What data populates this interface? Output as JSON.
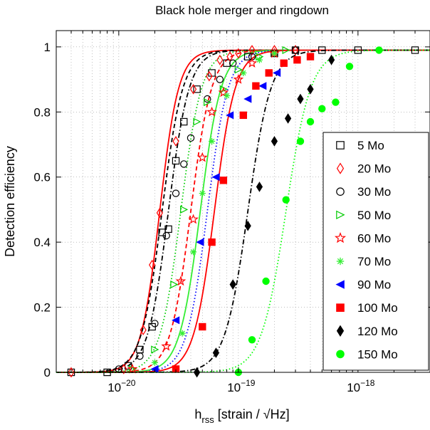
{
  "chart_data": {
    "type": "scatter",
    "title": "Black hole merger and ringdown",
    "ylabel": "Detection efficiency",
    "xlabel_main": "h",
    "xlabel_sub": "rss",
    "xlabel_rest": " [strain / √Hz]",
    "x_scale": "log",
    "xlim": [
      3e-21,
      4e-18
    ],
    "ylim": [
      0,
      1.05
    ],
    "grid": true,
    "legend_position": "right",
    "x_ticks": [
      {
        "value": 1e-20,
        "base": "10",
        "exp": "−20"
      },
      {
        "value": 1e-19,
        "base": "10",
        "exp": "−19"
      },
      {
        "value": 1e-18,
        "base": "10",
        "exp": "−18"
      }
    ],
    "y_ticks": [
      {
        "value": 0,
        "label": "0"
      },
      {
        "value": 0.2,
        "label": "0.2"
      },
      {
        "value": 0.4,
        "label": "0.4"
      },
      {
        "value": 0.6,
        "label": "0.6"
      },
      {
        "value": 0.8,
        "label": "0.8"
      },
      {
        "value": 1,
        "label": "1"
      }
    ],
    "series": [
      {
        "name": "5 Mo",
        "color": "#000000",
        "marker": "square",
        "filled": false,
        "line": "dashdot",
        "x50": 2.6e-20,
        "slope": 5.0,
        "x": [
          4e-21,
          8e-21,
          1.2e-20,
          1.5e-20,
          1.9e-20,
          2.3e-20,
          2.6e-20,
          3e-20,
          3.5e-20,
          4.5e-20,
          6e-20,
          8e-20,
          1.2e-19,
          2e-19,
          3e-19,
          5e-19,
          1e-18,
          3e-18
        ],
        "y": [
          0,
          0,
          0.02,
          0.07,
          0.14,
          0.43,
          0.44,
          0.65,
          0.77,
          0.87,
          0.92,
          0.95,
          0.97,
          0.98,
          0.99,
          0.99,
          0.99,
          0.99
        ]
      },
      {
        "name": "20 Mo",
        "color": "#ff0000",
        "marker": "diamond",
        "filled": false,
        "line": "solid",
        "x50": 2.2e-20,
        "slope": 5.5,
        "x": [
          4e-21,
          1.1e-20,
          1.6e-20,
          1.9e-20,
          2.2e-20,
          3e-20,
          4.2e-20,
          5.7e-20,
          7e-20,
          8.5e-20,
          1e-19,
          1.3e-19,
          2e-19,
          3e-19
        ],
        "y": [
          0,
          0.01,
          0.13,
          0.33,
          0.49,
          0.71,
          0.87,
          0.91,
          0.96,
          0.97,
          0.98,
          0.99,
          0.99,
          0.99
        ]
      },
      {
        "name": "30 Mo",
        "color": "#000000",
        "marker": "circle",
        "filled": false,
        "line": "dashed",
        "x50": 2.3e-20,
        "slope": 5.0,
        "x": [
          1e-20,
          1.5e-20,
          2e-20,
          2.5e-20,
          3e-20,
          3.5e-20,
          4e-20,
          5.5e-20,
          7e-20,
          9e-20,
          1.3e-19,
          2e-19,
          3e-19
        ],
        "y": [
          0.01,
          0.05,
          0.15,
          0.42,
          0.55,
          0.64,
          0.72,
          0.84,
          0.9,
          0.95,
          0.97,
          0.98,
          0.99
        ]
      },
      {
        "name": "50 Mo",
        "color": "#00cc00",
        "marker": "triangle-right",
        "filled": false,
        "line": "dotted",
        "x50": 3.3e-20,
        "slope": 5.0,
        "x": [
          1.3e-20,
          2e-20,
          2.9e-20,
          3.5e-20,
          4.5e-20,
          5.5e-20,
          7.5e-20,
          1e-19,
          1.5e-19,
          2.5e-19
        ],
        "y": [
          0.01,
          0.07,
          0.27,
          0.5,
          0.77,
          0.83,
          0.87,
          0.93,
          0.97,
          0.99
        ]
      },
      {
        "name": "60 Mo",
        "color": "#ff0000",
        "marker": "star",
        "filled": false,
        "line": "dashed",
        "x50": 4e-20,
        "slope": 5.0,
        "x": [
          1.3e-20,
          2.5e-20,
          3.3e-20,
          4.2e-20,
          5e-20,
          6e-20,
          7.5e-20,
          1e-19,
          1.3e-19,
          2e-19
        ],
        "y": [
          0.01,
          0.08,
          0.28,
          0.47,
          0.66,
          0.8,
          0.86,
          0.9,
          0.95,
          0.98
        ]
      },
      {
        "name": "70 Mo",
        "color": "#33ee33",
        "marker": "asterisk",
        "filled": false,
        "line": "solid",
        "x50": 4.8e-20,
        "slope": 5.0,
        "x": [
          2e-20,
          3.4e-20,
          4.2e-20,
          5e-20,
          6e-20,
          8e-20,
          1.1e-19,
          1.5e-19,
          2e-19
        ],
        "y": [
          0.03,
          0.12,
          0.37,
          0.55,
          0.71,
          0.85,
          0.92,
          0.96,
          0.98
        ]
      },
      {
        "name": "90 Mo",
        "color": "#0000ff",
        "marker": "triangle-left",
        "filled": true,
        "line": "dotted",
        "x50": 5.5e-20,
        "slope": 5.0,
        "x": [
          2e-20,
          3e-20,
          4.8e-20,
          6.5e-20,
          8.5e-20,
          1.2e-19,
          1.6e-19,
          2.1e-19
        ],
        "y": [
          0.01,
          0.16,
          0.4,
          0.6,
          0.79,
          0.84,
          0.88,
          0.92
        ]
      },
      {
        "name": "100 Mo",
        "color": "#ff0000",
        "marker": "square",
        "filled": true,
        "line": "solid",
        "x50": 6.3e-20,
        "slope": 5.0,
        "x": [
          3e-20,
          5e-20,
          6e-20,
          7.5e-20,
          1.1e-19,
          1.4e-19,
          1.8e-19,
          2.4e-19,
          3.1e-19,
          4e-19
        ],
        "y": [
          0.01,
          0.14,
          0.4,
          0.59,
          0.79,
          0.88,
          0.92,
          0.95,
          0.96,
          0.97
        ]
      },
      {
        "name": "120 Mo",
        "color": "#000000",
        "marker": "diamond",
        "filled": true,
        "line": "dashdot",
        "x50": 1.2e-19,
        "slope": 4.5,
        "x": [
          4.5e-20,
          6.5e-20,
          9e-20,
          1.2e-19,
          1.5e-19,
          2e-19,
          2.6e-19,
          3.3e-19,
          4e-19,
          6e-19
        ],
        "y": [
          0,
          0.06,
          0.27,
          0.45,
          0.57,
          0.71,
          0.78,
          0.84,
          0.87,
          0.96
        ]
      },
      {
        "name": "150 Mo",
        "color": "#00ff00",
        "marker": "circle",
        "filled": true,
        "line": "dotted",
        "x50": 2.5e-19,
        "slope": 4.2,
        "x": [
          1e-19,
          1.3e-19,
          1.7e-19,
          2.5e-19,
          3.3e-19,
          4e-19,
          5e-19,
          6.5e-19,
          8.5e-19,
          1.5e-18
        ],
        "y": [
          0,
          0.1,
          0.28,
          0.53,
          0.71,
          0.77,
          0.81,
          0.83,
          0.94,
          0.99
        ]
      }
    ]
  }
}
